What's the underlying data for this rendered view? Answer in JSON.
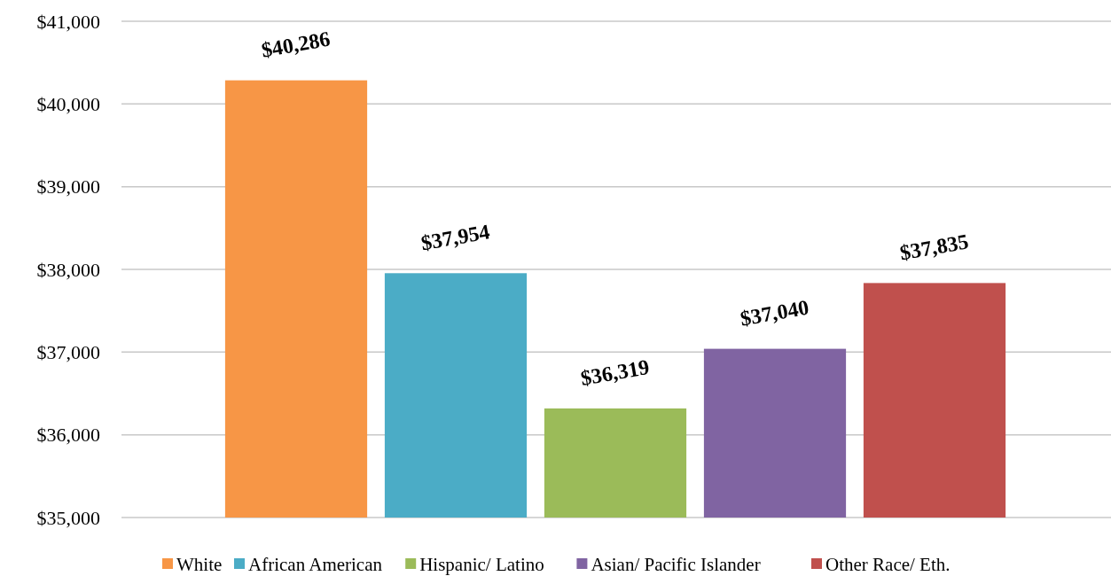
{
  "chart_data": {
    "type": "bar",
    "categories": [
      null,
      null,
      null,
      null,
      null
    ],
    "stacked": true,
    "series": [
      {
        "name": "White",
        "color": "#f79646",
        "values": [
          40286,
          null,
          null,
          null,
          null
        ]
      },
      {
        "name": "African American",
        "color": "#4bacc6",
        "values": [
          null,
          37954,
          null,
          null,
          null
        ]
      },
      {
        "name": "Hispanic/ Latino",
        "color": "#9bbb59",
        "values": [
          null,
          null,
          36319,
          null,
          null
        ]
      },
      {
        "name": "Asian/ Pacific Islander",
        "color": "#8064a2",
        "values": [
          null,
          null,
          null,
          37040,
          null
        ]
      },
      {
        "name": "Other Race/ Eth.",
        "color": "#c0504d",
        "values": [
          null,
          null,
          null,
          null,
          37835
        ]
      }
    ],
    "ylim": [
      35000,
      41000
    ],
    "yticks": [
      {
        "value": 35000,
        "label": "$35,000"
      },
      {
        "value": 36000,
        "label": "$36,000"
      },
      {
        "value": 37000,
        "label": "$37,000"
      },
      {
        "value": 38000,
        "label": "$38,000"
      },
      {
        "value": 39000,
        "label": "$39,000"
      },
      {
        "value": 40000,
        "label": "$40,000"
      },
      {
        "value": 41000,
        "label": "$41,000"
      }
    ],
    "value_labels": [
      "$40,286",
      "$37,954",
      "$36,319",
      "$37,040",
      "$37,835"
    ],
    "grid": "y",
    "legend": "bottom"
  }
}
